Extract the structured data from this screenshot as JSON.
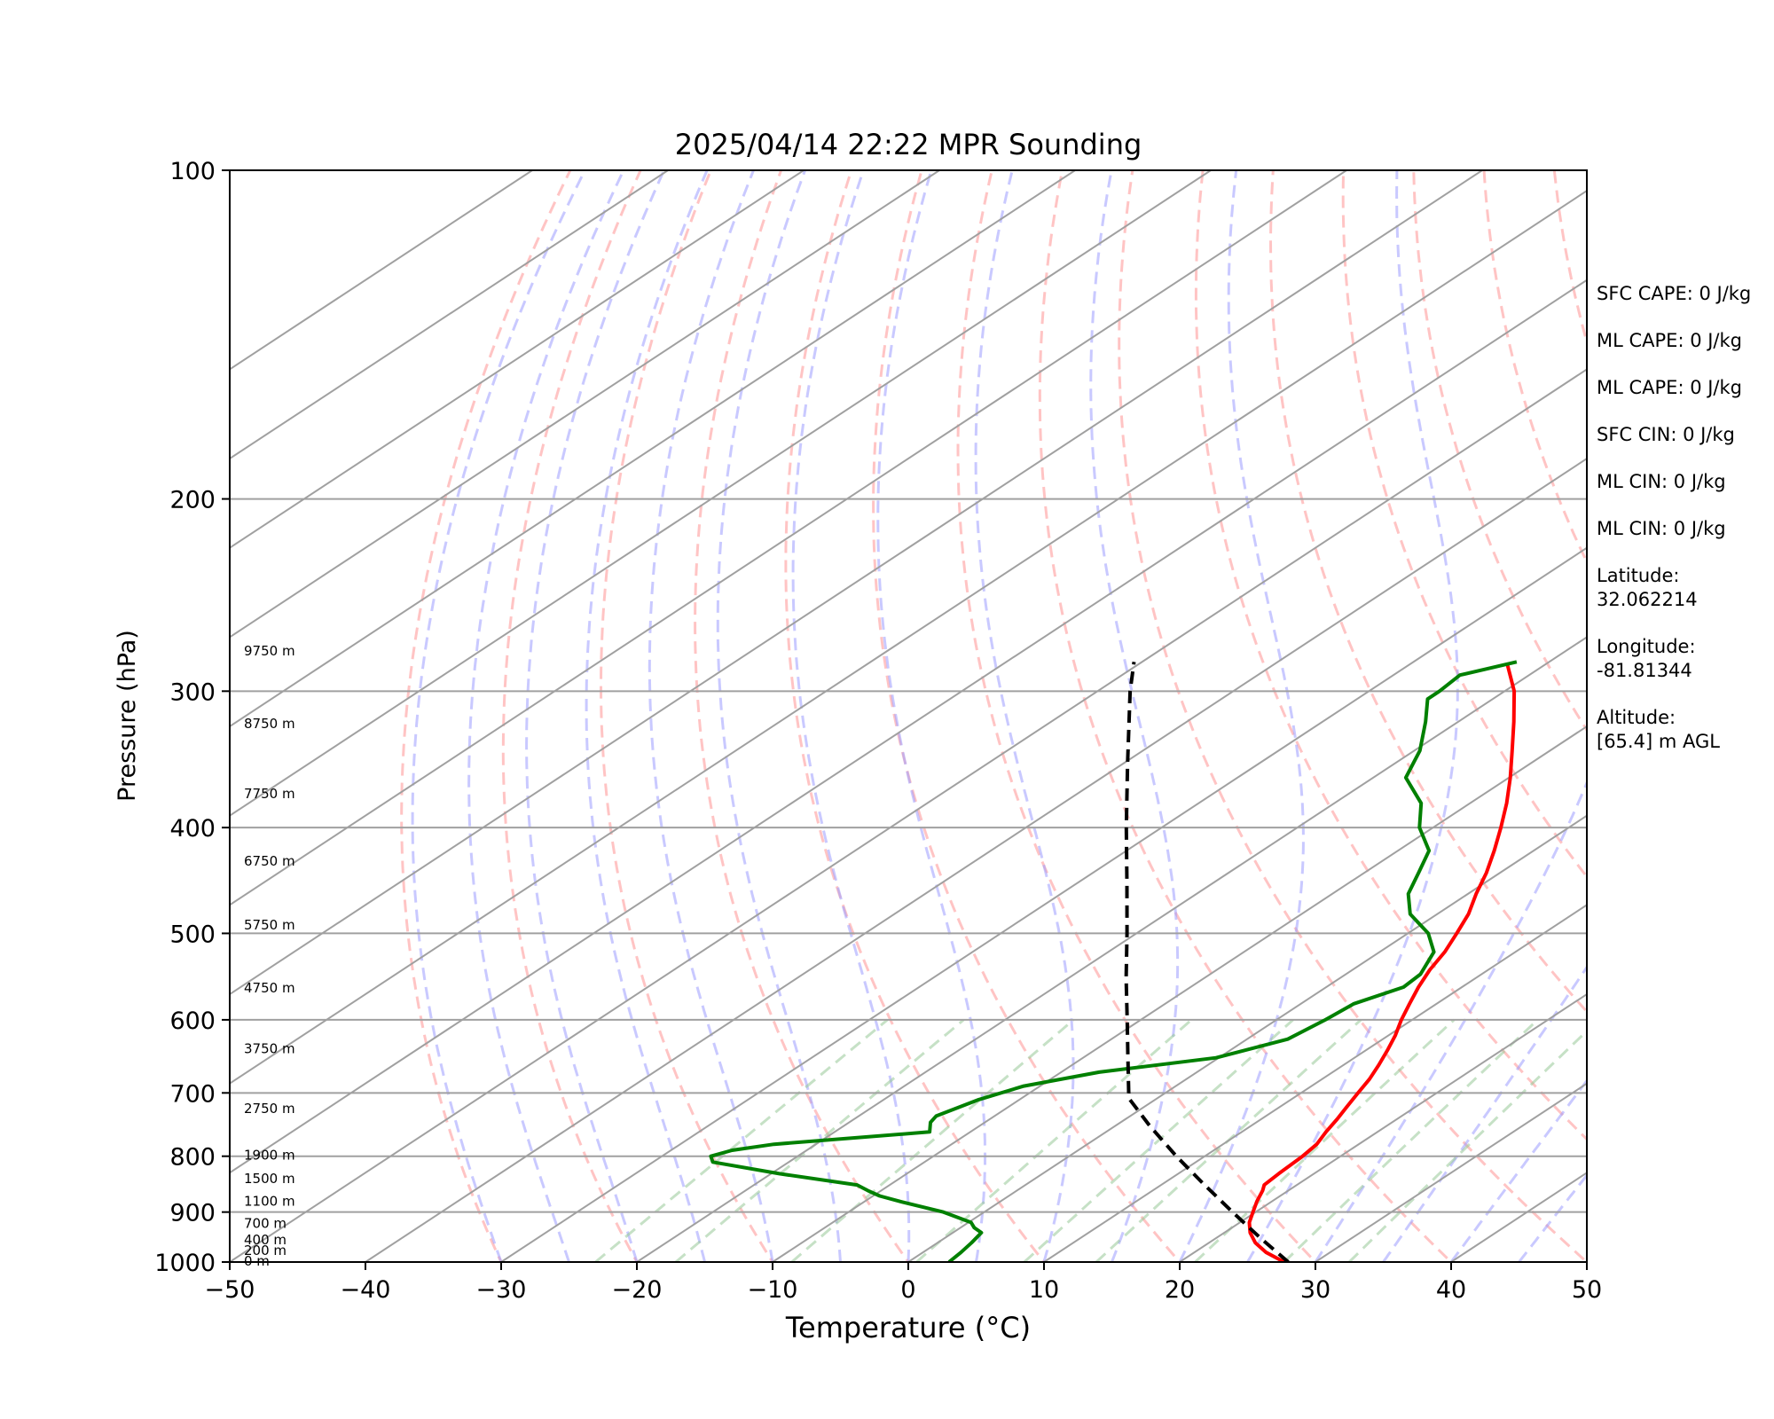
{
  "chart_data": {
    "type": "line",
    "diagram": "skew-T log-P",
    "title": "2025/04/14 22:22 MPR Sounding",
    "xlabel": "Temperature (°C)",
    "ylabel": "Pressure (hPa)",
    "xlim": [
      -50,
      50
    ],
    "ylim": [
      1000,
      100
    ],
    "y_scale": "log",
    "x_ticks": [
      -50,
      -40,
      -30,
      -20,
      -10,
      0,
      10,
      20,
      30,
      40,
      50
    ],
    "x_tick_labels": [
      "−50",
      "−40",
      "−30",
      "−20",
      "−10",
      "0",
      "10",
      "20",
      "30",
      "40",
      "50"
    ],
    "y_ticks": [
      1000,
      900,
      800,
      700,
      600,
      500,
      400,
      300,
      200,
      100
    ],
    "y_tick_labels": [
      "1000",
      "900",
      "800",
      "700",
      "600",
      "500",
      "400",
      "300",
      "200",
      "100"
    ],
    "grid": true,
    "series": [
      {
        "role": "temperature",
        "color": "#ff0000",
        "points": [
          [
            1000,
            27.7
          ],
          [
            980,
            25.3
          ],
          [
            960,
            23.4
          ],
          [
            940,
            21.9
          ],
          [
            920,
            20.7
          ],
          [
            900,
            19.8
          ],
          [
            880,
            18.9
          ],
          [
            860,
            18.1
          ],
          [
            850,
            17.6
          ],
          [
            830,
            17.4
          ],
          [
            800,
            17.2
          ],
          [
            780,
            16.9
          ],
          [
            760,
            16.2
          ],
          [
            740,
            15.6
          ],
          [
            720,
            14.9
          ],
          [
            700,
            14.2
          ],
          [
            680,
            13.5
          ],
          [
            660,
            12.6
          ],
          [
            640,
            11.6
          ],
          [
            620,
            10.5
          ],
          [
            600,
            9.2
          ],
          [
            580,
            8.0
          ],
          [
            560,
            6.8
          ],
          [
            540,
            5.7
          ],
          [
            520,
            4.8
          ],
          [
            500,
            3.6
          ],
          [
            480,
            2.3
          ],
          [
            460,
            0.6
          ],
          [
            440,
            -1.0
          ],
          [
            420,
            -2.9
          ],
          [
            400,
            -5.0
          ],
          [
            380,
            -7.3
          ],
          [
            360,
            -9.9
          ],
          [
            340,
            -12.8
          ],
          [
            320,
            -15.9
          ],
          [
            300,
            -19.3
          ],
          [
            284,
            -22.7
          ]
        ]
      },
      {
        "role": "dewpoint",
        "color": "#008000",
        "points": [
          [
            1000,
            3.0
          ],
          [
            980,
            2.8
          ],
          [
            960,
            2.5
          ],
          [
            940,
            2.1
          ],
          [
            930,
            1.0
          ],
          [
            920,
            0.2
          ],
          [
            900,
            -3.0
          ],
          [
            880,
            -7.4
          ],
          [
            870,
            -9.5
          ],
          [
            860,
            -11.0
          ],
          [
            850,
            -12.4
          ],
          [
            830,
            -19.4
          ],
          [
            810,
            -25.6
          ],
          [
            800,
            -26.4
          ],
          [
            790,
            -25.5
          ],
          [
            780,
            -23.1
          ],
          [
            760,
            -13.0
          ],
          [
            745,
            -14.0
          ],
          [
            735,
            -14.3
          ],
          [
            710,
            -13.0
          ],
          [
            690,
            -11.2
          ],
          [
            670,
            -7.2
          ],
          [
            650,
            -0.2
          ],
          [
            625,
            3.0
          ],
          [
            600,
            3.6
          ],
          [
            580,
            3.9
          ],
          [
            560,
            5.7
          ],
          [
            545,
            5.5
          ],
          [
            520,
            4.0
          ],
          [
            500,
            1.5
          ],
          [
            480,
            -2.0
          ],
          [
            460,
            -4.4
          ],
          [
            440,
            -6.0
          ],
          [
            420,
            -7.7
          ],
          [
            400,
            -11.0
          ],
          [
            380,
            -13.6
          ],
          [
            360,
            -17.6
          ],
          [
            340,
            -19.6
          ],
          [
            320,
            -22.4
          ],
          [
            305,
            -24.8
          ],
          [
            300,
            -24.8
          ],
          [
            290,
            -25.1
          ],
          [
            282,
            -22.4
          ]
        ]
      },
      {
        "role": "parcel profile",
        "color": "#000000",
        "dashed": true,
        "points": [
          [
            1000,
            28.0
          ],
          [
            950,
            23.2
          ],
          [
            900,
            18.3
          ],
          [
            850,
            13.2
          ],
          [
            800,
            7.9
          ],
          [
            750,
            2.5
          ],
          [
            707,
            -2.2
          ],
          [
            700,
            -2.7
          ],
          [
            650,
            -6.7
          ],
          [
            600,
            -11.0
          ],
          [
            550,
            -15.7
          ],
          [
            500,
            -20.7
          ],
          [
            450,
            -26.3
          ],
          [
            400,
            -32.6
          ],
          [
            350,
            -39.6
          ],
          [
            300,
            -47.6
          ],
          [
            282,
            -50.6
          ]
        ]
      }
    ],
    "height_labels": [
      "0 m",
      "200 m",
      "400 m",
      "700 m",
      "1100 m",
      "1500 m",
      "1900 m",
      "2750 m",
      "3750 m",
      "4750 m",
      "5750 m",
      "6750 m",
      "7750 m",
      "8750 m",
      "9750 m"
    ],
    "height_label_pressures": [
      1000,
      978,
      956,
      924,
      881,
      840,
      800,
      725,
      639,
      562,
      492,
      430,
      373,
      322,
      276
    ]
  },
  "stats": [
    [
      "SFC CAPE: 0 J/kg"
    ],
    [
      "ML CAPE: 0 J/kg"
    ],
    [
      "ML CAPE: 0 J/kg"
    ],
    [
      "SFC CIN: 0 J/kg"
    ],
    [
      "ML CIN: 0 J/kg"
    ],
    [
      "ML CIN: 0 J/kg"
    ],
    [
      "Latitude:",
      "32.062214"
    ],
    [
      "Longitude:",
      "-81.81344"
    ],
    [
      "Altitude:",
      "[65.4] m AGL"
    ]
  ],
  "colors": {
    "dry_adiabat": "#ff9c9c",
    "moist_adiabat": "#9c9cff",
    "mixing_ratio": "#98c898",
    "isotherm": "#a0a0a0",
    "isobar": "#a0a0a0"
  }
}
